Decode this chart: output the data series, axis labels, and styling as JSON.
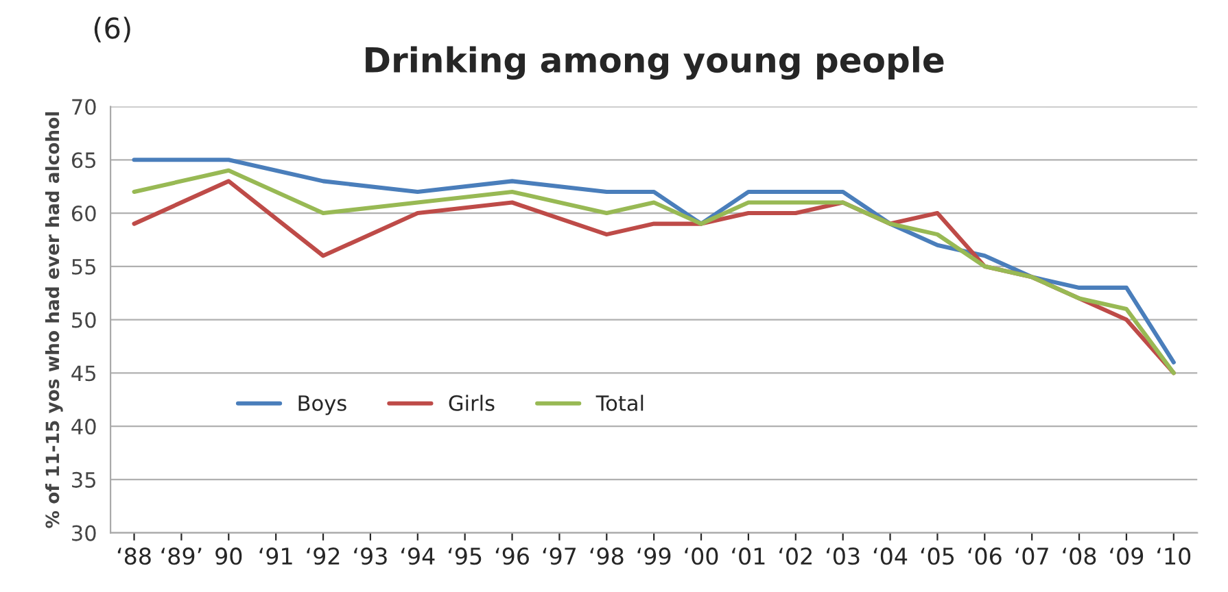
{
  "chart_data": {
    "type": "line",
    "title": "Drinking among young people",
    "ylabel": "% of 11-15 yos who had ever had alcohol",
    "annotations": [
      "(6)"
    ],
    "categories": [
      "‘88",
      "‘89’",
      "90",
      "‘91",
      "‘92",
      "‘93",
      "‘94",
      "‘95",
      "‘96",
      "‘97",
      "‘98",
      "‘99",
      "‘00",
      "‘01",
      "‘02",
      "‘03",
      "‘04",
      "‘05",
      "‘06",
      "‘07",
      "‘08",
      "‘09",
      "‘10"
    ],
    "series": [
      {
        "name": "Boys",
        "color": "#4a7ebb",
        "values": [
          65,
          null,
          65,
          null,
          63,
          null,
          62,
          null,
          63,
          null,
          62,
          62,
          59,
          62,
          62,
          62,
          59,
          57,
          56,
          54,
          53,
          53,
          46
        ]
      },
      {
        "name": "Girls",
        "color": "#be4b48",
        "values": [
          59,
          null,
          63,
          null,
          56,
          null,
          60,
          null,
          61,
          null,
          58,
          59,
          59,
          60,
          60,
          61,
          59,
          60,
          55,
          54,
          52,
          50,
          45
        ]
      },
      {
        "name": "Total",
        "color": "#98b954",
        "values": [
          62,
          null,
          64,
          null,
          60,
          null,
          61,
          null,
          62,
          null,
          60,
          61,
          59,
          61,
          61,
          61,
          59,
          58,
          55,
          54,
          52,
          51,
          45
        ]
      }
    ],
    "ylim": [
      30,
      70
    ],
    "yticks": [
      30,
      35,
      40,
      45,
      50,
      55,
      60,
      65,
      70
    ],
    "grid": "y",
    "legend": "left",
    "line_style": "solid",
    "marker": "none"
  }
}
